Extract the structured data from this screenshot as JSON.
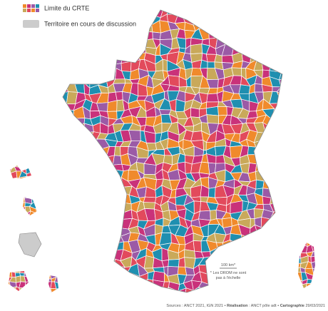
{
  "legend": {
    "items": [
      {
        "label": "Limite du CRTE"
      },
      {
        "label": "Territoire en cours de discussion"
      }
    ]
  },
  "scale": {
    "label": "100 km*",
    "note_lines": [
      "* Les DROM ne sont",
      "pas à l'échelle"
    ]
  },
  "footer": {
    "parts": [
      {
        "text": "Sources : ANCT 2021, IGN 2021 • ",
        "bold": false
      },
      {
        "text": "Réalisation",
        "bold": true
      },
      {
        "text": " : ANCT pôle adt • ",
        "bold": false
      },
      {
        "text": "Cartographie",
        "bold": true
      },
      {
        "text": " 29/03/2021",
        "bold": false
      }
    ]
  }
}
